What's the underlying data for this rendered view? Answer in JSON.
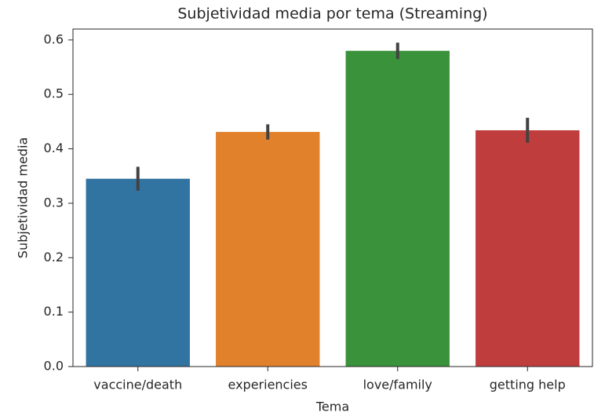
{
  "chart_data": {
    "type": "bar",
    "title": "Subjetividad media por tema (Streaming)",
    "xlabel": "Tema",
    "ylabel": "Subjetividad media",
    "categories": [
      "vaccine/death",
      "experiencies",
      "love/family",
      "getting help"
    ],
    "values": [
      0.345,
      0.431,
      0.58,
      0.434
    ],
    "errors": [
      0.022,
      0.014,
      0.015,
      0.023
    ],
    "colors": [
      "#3274a1",
      "#e1812c",
      "#3a923a",
      "#c03d3e"
    ],
    "error_color": "#424242",
    "ylim": [
      0,
      0.62
    ],
    "yticks": [
      {
        "value": 0,
        "label": "0.0"
      },
      0.1,
      0.2,
      0.3,
      0.4,
      0.5,
      0.6
    ],
    "grid": false
  }
}
